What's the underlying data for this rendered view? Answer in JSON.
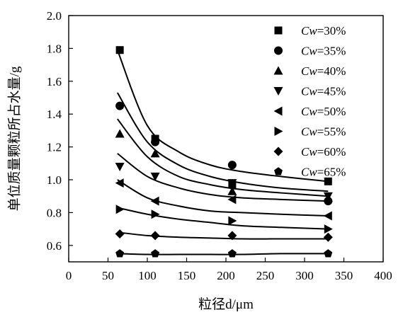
{
  "chart_data": {
    "type": "scatter",
    "xlabel": "粒径d/μm",
    "ylabel": "单位质量颗粒所占水量/g",
    "xlim": [
      0,
      400
    ],
    "ylim": [
      0.5,
      2.0
    ],
    "xticks": [
      0,
      50,
      100,
      150,
      200,
      250,
      300,
      350,
      400
    ],
    "yticks": [
      0.6,
      0.8,
      1.0,
      1.2,
      1.4,
      1.6,
      1.8,
      2.0
    ],
    "x_tick_labels": [
      "0",
      "50",
      "100",
      "150",
      "200",
      "250",
      "300",
      "350",
      "400"
    ],
    "y_tick_labels": [
      "0.6",
      "0.8",
      "1.0",
      "1.2",
      "1.4",
      "1.6",
      "1.8",
      "2.0"
    ],
    "grid": false,
    "legend_position": "right",
    "series": [
      {
        "name": "Cw=30%",
        "label_prefix": "Cw",
        "label_suffix": "=30%",
        "marker": "square",
        "x": [
          65,
          110,
          208,
          330
        ],
        "y": [
          1.79,
          1.25,
          0.97,
          0.99
        ],
        "fit": [
          1.79,
          1.33,
          1.17,
          1.09,
          1.05,
          1.02,
          0.99
        ]
      },
      {
        "name": "Cw=35%",
        "label_prefix": "Cw",
        "label_suffix": "=35%",
        "marker": "circle",
        "x": [
          65,
          110,
          208,
          330
        ],
        "y": [
          1.45,
          1.23,
          1.09,
          0.87
        ],
        "fit": [
          1.53,
          1.23,
          1.09,
          1.02,
          0.98,
          0.95,
          0.93
        ]
      },
      {
        "name": "Cw=40%",
        "label_prefix": "Cw",
        "label_suffix": "=40%",
        "marker": "triangle-up",
        "x": [
          65,
          110,
          208,
          330
        ],
        "y": [
          1.28,
          1.16,
          0.93,
          0.89
        ],
        "fit": [
          1.37,
          1.14,
          1.02,
          0.97,
          0.94,
          0.92,
          0.9
        ]
      },
      {
        "name": "Cw=45%",
        "label_prefix": "Cw",
        "label_suffix": "=45%",
        "marker": "triangle-down",
        "x": [
          65,
          110,
          208,
          330
        ],
        "y": [
          1.08,
          1.02,
          0.98,
          0.9
        ],
        "fit": [
          1.16,
          1.02,
          0.95,
          0.91,
          0.89,
          0.88,
          0.87
        ]
      },
      {
        "name": "Cw=50%",
        "label_prefix": "Cw",
        "label_suffix": "=50%",
        "marker": "triangle-left",
        "x": [
          65,
          110,
          208,
          330
        ],
        "y": [
          0.98,
          0.87,
          0.88,
          0.78
        ],
        "fit": [
          1.0,
          0.89,
          0.84,
          0.81,
          0.8,
          0.79,
          0.78
        ]
      },
      {
        "name": "Cw=55%",
        "label_prefix": "Cw",
        "label_suffix": "=55%",
        "marker": "triangle-right",
        "x": [
          65,
          110,
          208,
          330
        ],
        "y": [
          0.82,
          0.79,
          0.75,
          0.7
        ],
        "fit": [
          0.83,
          0.79,
          0.76,
          0.74,
          0.72,
          0.71,
          0.7
        ]
      },
      {
        "name": "Cw=60%",
        "label_prefix": "Cw",
        "label_suffix": "=60%",
        "marker": "diamond",
        "x": [
          65,
          110,
          208,
          330
        ],
        "y": [
          0.67,
          0.66,
          0.66,
          0.65
        ],
        "fit": [
          0.68,
          0.66,
          0.65,
          0.645,
          0.64,
          0.64,
          0.64
        ]
      },
      {
        "name": "Cw=65%",
        "label_prefix": "Cw",
        "label_suffix": "=65%",
        "marker": "pentagon",
        "x": [
          65,
          110,
          208,
          330
        ],
        "y": [
          0.55,
          0.55,
          0.55,
          0.55
        ],
        "fit": [
          0.55,
          0.545,
          0.545,
          0.545,
          0.545,
          0.55,
          0.55
        ]
      }
    ],
    "fit_x": [
      62,
      100,
      140,
      180,
      220,
      270,
      330
    ]
  }
}
